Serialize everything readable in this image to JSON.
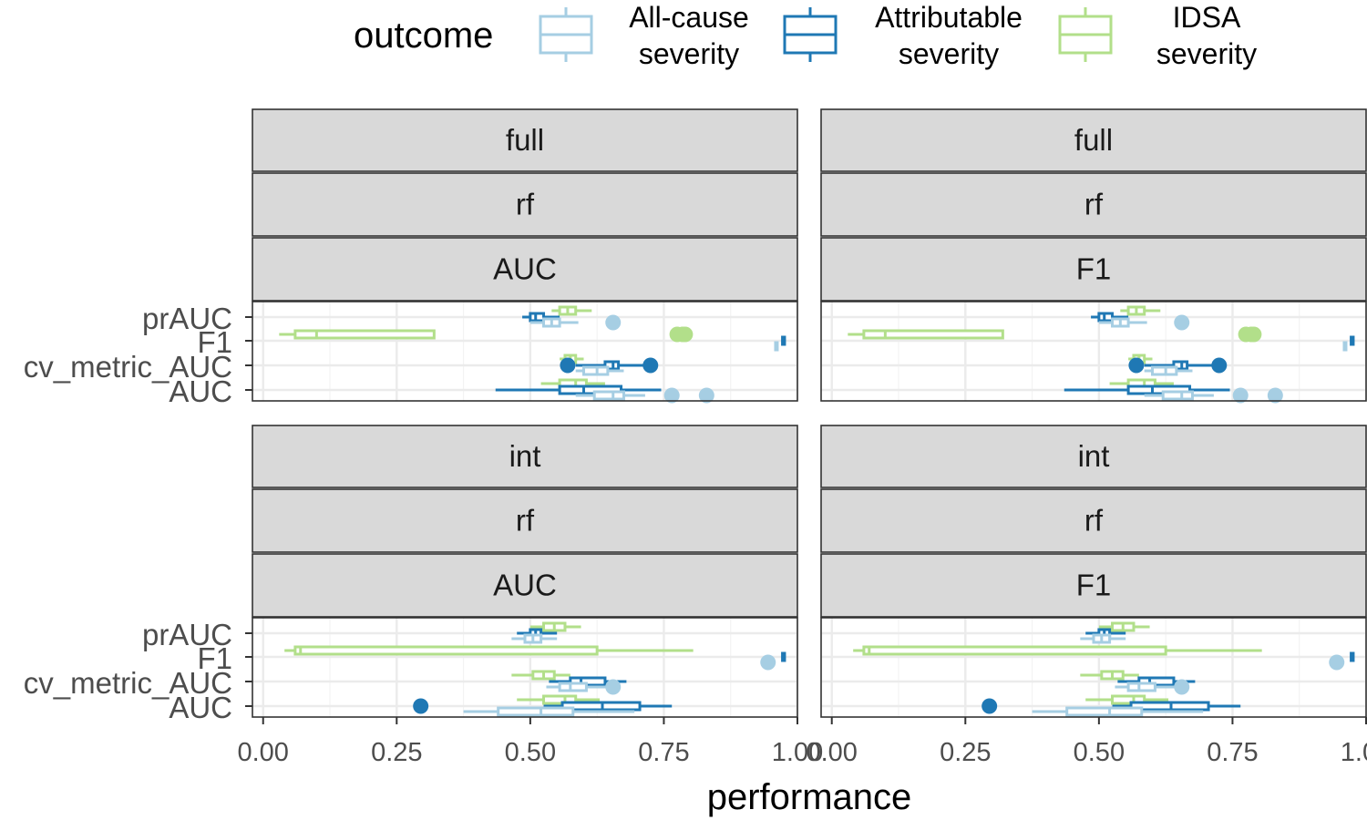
{
  "chart_data": {
    "type": "boxplot",
    "xlabel": "performance",
    "xlim": [
      -0.02,
      1.0
    ],
    "x_ticks": [
      "0.00",
      "0.25",
      "0.50",
      "0.75",
      "1.00"
    ],
    "x_tick_values": [
      0,
      0.25,
      0.5,
      0.75,
      1.0
    ],
    "y_categories": [
      "prAUC",
      "F1",
      "cv_metric_AUC",
      "AUC"
    ],
    "grid": true,
    "legend": {
      "title": "outcome",
      "position": "top",
      "entries": [
        {
          "key": "allcause",
          "line1": "All-cause",
          "line2": "severity",
          "color": "#a6cee3"
        },
        {
          "key": "attrib",
          "line1": "Attributable",
          "line2": "severity",
          "color": "#1f78b4"
        },
        {
          "key": "idsa",
          "line1": "IDSA",
          "line2": "severity",
          "color": "#b2df8a"
        }
      ]
    },
    "panels": [
      {
        "strips": [
          "full",
          "rf",
          "AUC"
        ],
        "series": {
          "prAUC": {
            "idsa": {
              "min": 0.54,
              "q1": 0.555,
              "med": 0.57,
              "q3": 0.585,
              "max": 0.615,
              "out": []
            },
            "attrib": {
              "min": 0.485,
              "q1": 0.5,
              "med": 0.51,
              "q3": 0.525,
              "max": 0.555,
              "out": []
            },
            "allcause": {
              "min": 0.5,
              "q1": 0.525,
              "med": 0.54,
              "q3": 0.555,
              "max": 0.59,
              "out": [
                0.655
              ]
            }
          },
          "F1": {
            "idsa": {
              "min": 0.03,
              "q1": 0.06,
              "med": 0.1,
              "q3": 0.32,
              "max": 0.32,
              "out": [
                0.775,
                0.785,
                0.79
              ]
            },
            "attrib": {
              "min": 0.97,
              "q1": 0.972,
              "med": 0.974,
              "q3": 0.976,
              "max": 0.978,
              "out": []
            },
            "allcause": {
              "min": 0.957,
              "q1": 0.959,
              "med": 0.96,
              "q3": 0.961,
              "max": 0.963,
              "out": []
            }
          },
          "cv_metric_AUC": {
            "idsa": {
              "min": 0.555,
              "q1": 0.565,
              "med": 0.575,
              "q3": 0.585,
              "max": 0.6,
              "out": []
            },
            "attrib": {
              "min": 0.585,
              "q1": 0.64,
              "med": 0.655,
              "q3": 0.665,
              "max": 0.715,
              "out": [
                0.57,
                0.725
              ]
            },
            "allcause": {
              "min": 0.585,
              "q1": 0.6,
              "med": 0.625,
              "q3": 0.645,
              "max": 0.675,
              "out": []
            }
          },
          "AUC": {
            "idsa": {
              "min": 0.52,
              "q1": 0.555,
              "med": 0.585,
              "q3": 0.605,
              "max": 0.64,
              "out": []
            },
            "attrib": {
              "min": 0.435,
              "q1": 0.555,
              "med": 0.6,
              "q3": 0.67,
              "max": 0.745,
              "out": []
            },
            "allcause": {
              "min": 0.585,
              "q1": 0.62,
              "med": 0.655,
              "q3": 0.675,
              "max": 0.715,
              "out": [
                0.765,
                0.83
              ]
            }
          }
        }
      },
      {
        "strips": [
          "full",
          "rf",
          "F1"
        ],
        "series": {
          "prAUC": {
            "idsa": {
              "min": 0.54,
              "q1": 0.555,
              "med": 0.57,
              "q3": 0.585,
              "max": 0.615,
              "out": []
            },
            "attrib": {
              "min": 0.485,
              "q1": 0.5,
              "med": 0.51,
              "q3": 0.525,
              "max": 0.555,
              "out": []
            },
            "allcause": {
              "min": 0.5,
              "q1": 0.525,
              "med": 0.54,
              "q3": 0.555,
              "max": 0.59,
              "out": [
                0.655
              ]
            }
          },
          "F1": {
            "idsa": {
              "min": 0.03,
              "q1": 0.06,
              "med": 0.1,
              "q3": 0.32,
              "max": 0.32,
              "out": [
                0.775,
                0.785,
                0.79
              ]
            },
            "attrib": {
              "min": 0.97,
              "q1": 0.972,
              "med": 0.974,
              "q3": 0.976,
              "max": 0.978,
              "out": []
            },
            "allcause": {
              "min": 0.957,
              "q1": 0.959,
              "med": 0.96,
              "q3": 0.961,
              "max": 0.963,
              "out": []
            }
          },
          "cv_metric_AUC": {
            "idsa": {
              "min": 0.555,
              "q1": 0.565,
              "med": 0.575,
              "q3": 0.585,
              "max": 0.6,
              "out": []
            },
            "attrib": {
              "min": 0.585,
              "q1": 0.64,
              "med": 0.655,
              "q3": 0.665,
              "max": 0.715,
              "out": [
                0.57,
                0.725
              ]
            },
            "allcause": {
              "min": 0.585,
              "q1": 0.6,
              "med": 0.625,
              "q3": 0.645,
              "max": 0.675,
              "out": []
            }
          },
          "AUC": {
            "idsa": {
              "min": 0.52,
              "q1": 0.555,
              "med": 0.585,
              "q3": 0.605,
              "max": 0.64,
              "out": []
            },
            "attrib": {
              "min": 0.435,
              "q1": 0.555,
              "med": 0.6,
              "q3": 0.67,
              "max": 0.745,
              "out": []
            },
            "allcause": {
              "min": 0.585,
              "q1": 0.62,
              "med": 0.655,
              "q3": 0.675,
              "max": 0.715,
              "out": [
                0.765,
                0.83
              ]
            }
          }
        }
      },
      {
        "strips": [
          "int",
          "rf",
          "AUC"
        ],
        "series": {
          "prAUC": {
            "idsa": {
              "min": 0.5,
              "q1": 0.525,
              "med": 0.545,
              "q3": 0.565,
              "max": 0.595,
              "out": []
            },
            "attrib": {
              "min": 0.475,
              "q1": 0.5,
              "med": 0.51,
              "q3": 0.52,
              "max": 0.55,
              "out": []
            },
            "allcause": {
              "min": 0.465,
              "q1": 0.49,
              "med": 0.505,
              "q3": 0.52,
              "max": 0.55,
              "out": []
            }
          },
          "F1": {
            "idsa": {
              "min": 0.04,
              "q1": 0.06,
              "med": 0.07,
              "q3": 0.625,
              "max": 0.805,
              "out": []
            },
            "attrib": {
              "min": 0.97,
              "q1": 0.972,
              "med": 0.974,
              "q3": 0.976,
              "max": 0.978,
              "out": []
            },
            "allcause": {
              "min": 0.94,
              "q1": 0.942,
              "med": 0.943,
              "q3": 0.944,
              "max": 0.946,
              "out": [
                0.945
              ]
            }
          },
          "cv_metric_AUC": {
            "idsa": {
              "min": 0.465,
              "q1": 0.505,
              "med": 0.525,
              "q3": 0.545,
              "max": 0.575,
              "out": []
            },
            "attrib": {
              "min": 0.535,
              "q1": 0.575,
              "med": 0.595,
              "q3": 0.64,
              "max": 0.68,
              "out": []
            },
            "allcause": {
              "min": 0.53,
              "q1": 0.555,
              "med": 0.575,
              "q3": 0.605,
              "max": 0.645,
              "out": [
                0.655
              ]
            }
          },
          "AUC": {
            "idsa": {
              "min": 0.475,
              "q1": 0.525,
              "med": 0.565,
              "q3": 0.585,
              "max": 0.63,
              "out": []
            },
            "attrib": {
              "min": 0.525,
              "q1": 0.56,
              "med": 0.635,
              "q3": 0.705,
              "max": 0.765,
              "out": [
                0.295
              ]
            },
            "allcause": {
              "min": 0.375,
              "q1": 0.44,
              "med": 0.52,
              "q3": 0.58,
              "max": 0.695,
              "out": []
            }
          }
        }
      },
      {
        "strips": [
          "int",
          "rf",
          "F1"
        ],
        "series": {
          "prAUC": {
            "idsa": {
              "min": 0.5,
              "q1": 0.525,
              "med": 0.545,
              "q3": 0.565,
              "max": 0.595,
              "out": []
            },
            "attrib": {
              "min": 0.475,
              "q1": 0.5,
              "med": 0.51,
              "q3": 0.52,
              "max": 0.55,
              "out": []
            },
            "allcause": {
              "min": 0.465,
              "q1": 0.49,
              "med": 0.505,
              "q3": 0.52,
              "max": 0.55,
              "out": []
            }
          },
          "F1": {
            "idsa": {
              "min": 0.04,
              "q1": 0.06,
              "med": 0.07,
              "q3": 0.625,
              "max": 0.805,
              "out": []
            },
            "attrib": {
              "min": 0.97,
              "q1": 0.972,
              "med": 0.974,
              "q3": 0.976,
              "max": 0.978,
              "out": []
            },
            "allcause": {
              "min": 0.94,
              "q1": 0.942,
              "med": 0.943,
              "q3": 0.944,
              "max": 0.946,
              "out": [
                0.945
              ]
            }
          },
          "cv_metric_AUC": {
            "idsa": {
              "min": 0.465,
              "q1": 0.505,
              "med": 0.525,
              "q3": 0.545,
              "max": 0.575,
              "out": []
            },
            "attrib": {
              "min": 0.535,
              "q1": 0.575,
              "med": 0.595,
              "q3": 0.64,
              "max": 0.68,
              "out": []
            },
            "allcause": {
              "min": 0.53,
              "q1": 0.555,
              "med": 0.575,
              "q3": 0.605,
              "max": 0.645,
              "out": [
                0.655
              ]
            }
          },
          "AUC": {
            "idsa": {
              "min": 0.475,
              "q1": 0.525,
              "med": 0.565,
              "q3": 0.585,
              "max": 0.63,
              "out": []
            },
            "attrib": {
              "min": 0.525,
              "q1": 0.56,
              "med": 0.635,
              "q3": 0.705,
              "max": 0.765,
              "out": [
                0.295
              ]
            },
            "allcause": {
              "min": 0.375,
              "q1": 0.44,
              "med": 0.52,
              "q3": 0.58,
              "max": 0.695,
              "out": []
            }
          }
        }
      }
    ]
  }
}
